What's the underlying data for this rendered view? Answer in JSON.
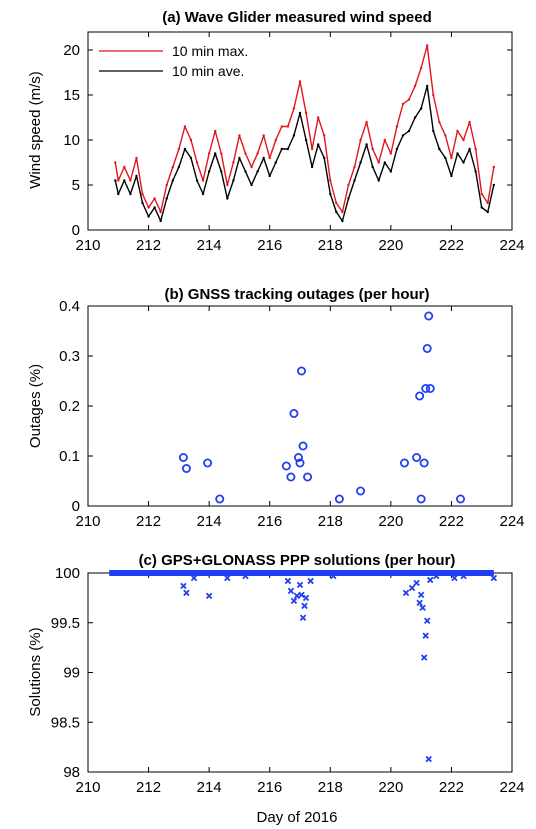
{
  "colors": {
    "max": "#e0161c",
    "ave": "#000000",
    "blue": "#1f3ff0"
  },
  "chart_data": [
    {
      "type": "line",
      "title": "(a) Wave Glider measured wind speed",
      "xlabel": "",
      "ylabel": "Wind speed (m/s)",
      "xlim": [
        210,
        224
      ],
      "ylim": [
        0,
        22
      ],
      "xticks": [
        "210",
        "212",
        "214",
        "216",
        "218",
        "220",
        "222",
        "224"
      ],
      "yticks": [
        "0",
        "5",
        "10",
        "15",
        "20"
      ],
      "legend_position": "top-left",
      "series": [
        {
          "name": "10 min max.",
          "color": "max",
          "x": [
            210.9,
            211.0,
            211.2,
            211.4,
            211.6,
            211.8,
            212.0,
            212.2,
            212.4,
            212.6,
            212.8,
            213.0,
            213.2,
            213.4,
            213.6,
            213.8,
            214.0,
            214.2,
            214.4,
            214.6,
            214.8,
            215.0,
            215.2,
            215.4,
            215.6,
            215.8,
            216.0,
            216.2,
            216.4,
            216.6,
            216.8,
            217.0,
            217.2,
            217.4,
            217.6,
            217.8,
            218.0,
            218.2,
            218.4,
            218.6,
            218.8,
            219.0,
            219.2,
            219.4,
            219.6,
            219.8,
            220.0,
            220.2,
            220.4,
            220.6,
            220.8,
            221.0,
            221.2,
            221.4,
            221.6,
            221.8,
            222.0,
            222.2,
            222.4,
            222.6,
            222.8,
            223.0,
            223.2,
            223.4
          ],
          "y": [
            7.5,
            5.5,
            7.0,
            5.5,
            8.0,
            4.0,
            2.5,
            3.5,
            2.0,
            5.0,
            7.0,
            9.0,
            11.5,
            10.0,
            7.5,
            5.5,
            8.5,
            11.0,
            8.5,
            5.0,
            7.5,
            10.5,
            8.5,
            7.0,
            8.5,
            10.5,
            8.0,
            10.0,
            11.5,
            11.5,
            13.5,
            16.5,
            13.0,
            9.0,
            12.5,
            10.5,
            5.5,
            3.0,
            2.0,
            5.0,
            7.0,
            10.0,
            12.0,
            9.0,
            7.5,
            10.0,
            8.5,
            11.5,
            14.0,
            14.5,
            16.0,
            18.0,
            20.5,
            15.0,
            12.0,
            10.5,
            8.0,
            11.0,
            10.0,
            12.0,
            9.0,
            4.0,
            3.0,
            7.0
          ]
        },
        {
          "name": "10 min ave.",
          "color": "ave",
          "x": [
            210.9,
            211.0,
            211.2,
            211.4,
            211.6,
            211.8,
            212.0,
            212.2,
            212.4,
            212.6,
            212.8,
            213.0,
            213.2,
            213.4,
            213.6,
            213.8,
            214.0,
            214.2,
            214.4,
            214.6,
            214.8,
            215.0,
            215.2,
            215.4,
            215.6,
            215.8,
            216.0,
            216.2,
            216.4,
            216.6,
            216.8,
            217.0,
            217.2,
            217.4,
            217.6,
            217.8,
            218.0,
            218.2,
            218.4,
            218.6,
            218.8,
            219.0,
            219.2,
            219.4,
            219.6,
            219.8,
            220.0,
            220.2,
            220.4,
            220.6,
            220.8,
            221.0,
            221.2,
            221.4,
            221.6,
            221.8,
            222.0,
            222.2,
            222.4,
            222.6,
            222.8,
            223.0,
            223.2,
            223.4
          ],
          "y": [
            5.5,
            4.0,
            5.5,
            4.0,
            6.0,
            3.0,
            1.5,
            2.5,
            1.0,
            3.5,
            5.5,
            7.0,
            9.0,
            8.0,
            5.5,
            4.0,
            6.5,
            8.5,
            6.5,
            3.5,
            5.5,
            8.0,
            6.5,
            5.0,
            6.5,
            8.0,
            6.0,
            7.5,
            9.0,
            9.0,
            10.5,
            13.0,
            10.0,
            7.0,
            9.5,
            8.0,
            4.0,
            2.0,
            1.0,
            3.5,
            5.5,
            7.5,
            9.5,
            7.0,
            5.5,
            7.5,
            6.5,
            9.0,
            10.5,
            11.0,
            12.5,
            13.5,
            16.0,
            11.0,
            9.0,
            8.0,
            6.0,
            8.5,
            7.5,
            9.0,
            6.5,
            2.5,
            2.0,
            5.0
          ]
        }
      ]
    },
    {
      "type": "scatter",
      "title": "(b) GNSS tracking outages (per hour)",
      "xlabel": "",
      "ylabel": "Outages (%)",
      "xlim": [
        210,
        224
      ],
      "ylim": [
        0,
        0.4
      ],
      "xticks": [
        "210",
        "212",
        "214",
        "216",
        "218",
        "220",
        "222",
        "224"
      ],
      "yticks": [
        "0",
        "0.1",
        "0.2",
        "0.3",
        "0.4"
      ],
      "series": [
        {
          "color": "blue",
          "marker": "circle",
          "x": [
            213.15,
            213.25,
            213.95,
            214.35,
            216.55,
            216.7,
            216.8,
            216.95,
            217.0,
            217.05,
            217.1,
            217.25,
            218.3,
            219.0,
            220.45,
            220.85,
            220.95,
            221.0,
            221.1,
            221.15,
            221.2,
            221.25,
            221.3,
            222.3
          ],
          "y": [
            0.097,
            0.075,
            0.086,
            0.014,
            0.08,
            0.058,
            0.185,
            0.097,
            0.086,
            0.27,
            0.12,
            0.058,
            0.014,
            0.03,
            0.086,
            0.097,
            0.22,
            0.014,
            0.086,
            0.235,
            0.315,
            0.38,
            0.235,
            0.014
          ]
        }
      ]
    },
    {
      "type": "scatter",
      "title": "(c) GPS+GLONASS PPP solutions (per hour)",
      "xlabel": "Day of 2016",
      "ylabel": "Solutions (%)",
      "xlim": [
        210,
        224
      ],
      "ylim": [
        98,
        100
      ],
      "xticks": [
        "210",
        "212",
        "214",
        "216",
        "218",
        "220",
        "222",
        "224"
      ],
      "yticks": [
        "98",
        "98.5",
        "99",
        "99.5",
        "100"
      ],
      "series": [
        {
          "color": "blue",
          "marker": "x",
          "baseline": 100,
          "x_start": 210.7,
          "x_end": 223.4,
          "x": [
            213.15,
            213.25,
            213.5,
            214.0,
            214.6,
            215.2,
            216.6,
            216.7,
            216.8,
            216.9,
            217.0,
            217.05,
            217.1,
            217.15,
            217.2,
            217.35,
            218.1,
            220.5,
            220.7,
            220.85,
            220.95,
            221.0,
            221.05,
            221.1,
            221.15,
            221.2,
            221.25,
            221.3,
            221.5,
            222.1,
            222.4,
            223.4
          ],
          "y": [
            99.87,
            99.8,
            99.95,
            99.77,
            99.95,
            99.97,
            99.92,
            99.82,
            99.72,
            99.77,
            99.88,
            99.78,
            99.55,
            99.67,
            99.75,
            99.92,
            99.97,
            99.8,
            99.85,
            99.9,
            99.7,
            99.78,
            99.65,
            99.15,
            99.37,
            99.52,
            98.13,
            99.93,
            99.97,
            99.95,
            99.97,
            99.95
          ]
        }
      ]
    }
  ]
}
